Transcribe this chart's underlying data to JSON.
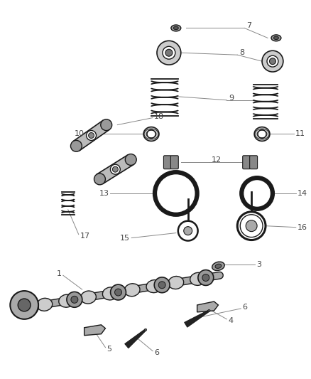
{
  "bg_color": "#ffffff",
  "part_color": "#1a1a1a",
  "line_color": "#888888",
  "label_color": "#444444",
  "figsize": [
    4.38,
    5.33
  ],
  "dpi": 100
}
